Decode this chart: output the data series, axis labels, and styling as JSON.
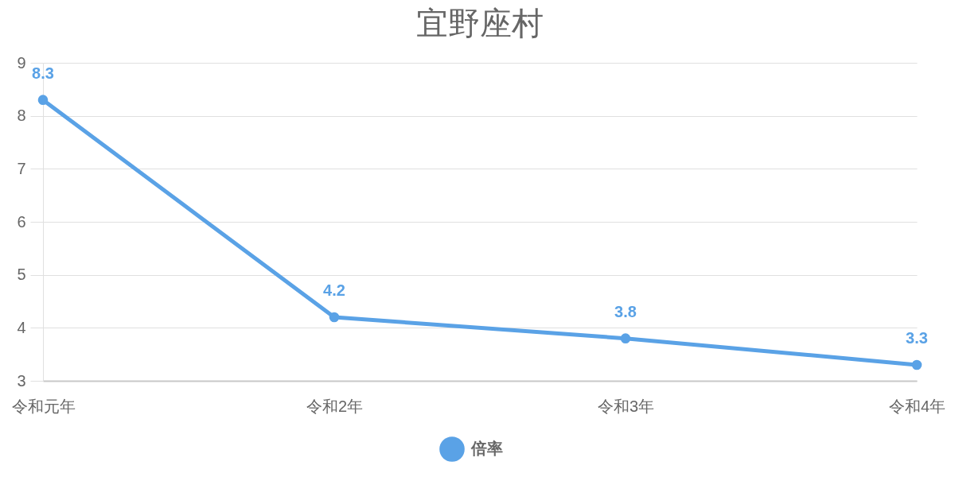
{
  "chart_data": {
    "type": "line",
    "title": "宜野座村",
    "categories": [
      "令和元年",
      "令和2年",
      "令和3年",
      "令和4年"
    ],
    "series": [
      {
        "name": "倍率",
        "color": "#5aa2e6",
        "values": [
          8.3,
          4.2,
          3.8,
          3.3
        ]
      }
    ],
    "ylim": [
      3,
      9
    ],
    "yticks": [
      3,
      4,
      5,
      6,
      7,
      8,
      9
    ],
    "grid": "y",
    "legend": "bottom",
    "marker": "circle",
    "line_style": "solid",
    "data_labels": true
  }
}
